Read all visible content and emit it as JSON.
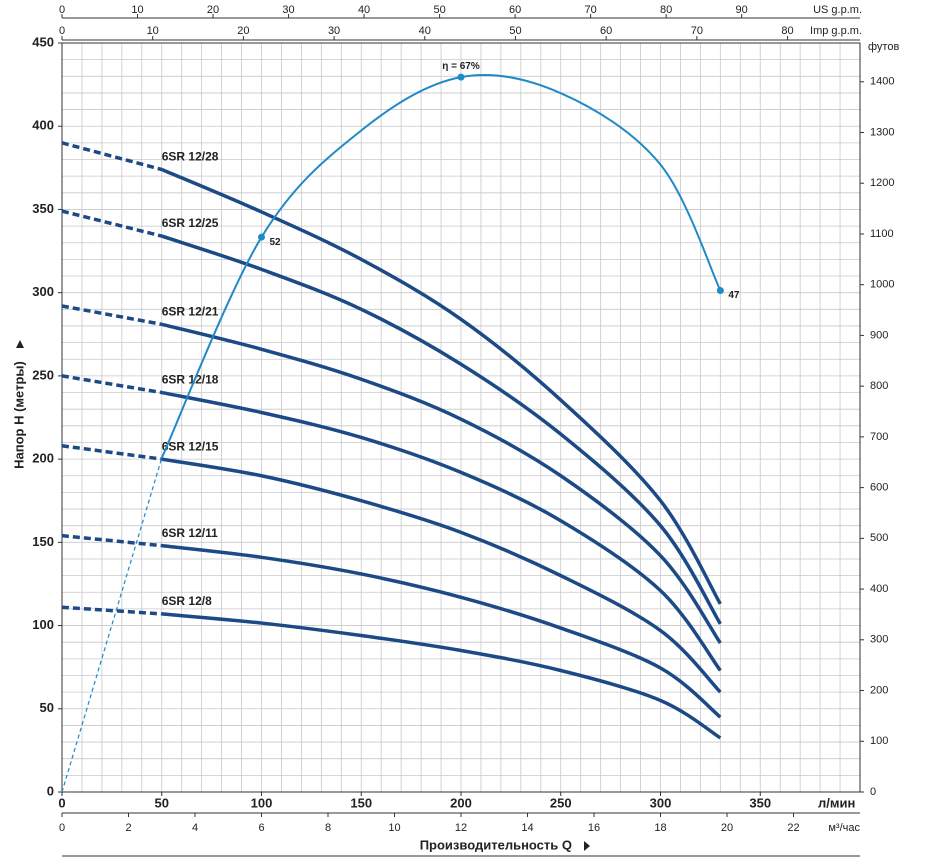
{
  "chart_data": {
    "type": "line",
    "ylabel": "Напор H (метры)",
    "y2label": "футов",
    "xlabel": "л/мин",
    "xtitle": "Производительность Q",
    "x": [
      0,
      50,
      100,
      150,
      200,
      250,
      300,
      330
    ],
    "xlim": [
      0,
      400
    ],
    "xticks": [
      0,
      50,
      100,
      150,
      200,
      250,
      300,
      350
    ],
    "xminorticks": [
      10,
      20,
      30,
      40,
      60,
      70,
      80,
      90,
      110,
      120,
      130,
      140,
      160,
      170,
      180,
      190,
      210,
      220,
      230,
      240,
      260,
      270,
      280,
      290,
      310,
      320,
      330,
      340,
      360,
      370,
      380,
      390
    ],
    "ylim": [
      0,
      450
    ],
    "yticks": [
      0,
      50,
      100,
      150,
      200,
      250,
      300,
      350,
      400,
      450
    ],
    "yminorticks": [
      10,
      20,
      30,
      40,
      60,
      70,
      80,
      90,
      110,
      120,
      130,
      140,
      160,
      170,
      180,
      190,
      210,
      220,
      230,
      240,
      260,
      270,
      280,
      290,
      310,
      320,
      330,
      340,
      360,
      370,
      380,
      390,
      410,
      420,
      430,
      440
    ],
    "y2lim": [
      0,
      1476.4
    ],
    "y2ticks": [
      0,
      100,
      200,
      300,
      400,
      500,
      600,
      700,
      800,
      900,
      1000,
      1100,
      1200,
      1300,
      1400
    ],
    "top_axes": [
      {
        "label": "US g.p.m.",
        "lim": [
          0,
          105.67
        ],
        "ticks": [
          0,
          10,
          20,
          30,
          40,
          50,
          60,
          70,
          80,
          90
        ]
      },
      {
        "label": "Imp g.p.m.",
        "lim": [
          0,
          87.99
        ],
        "ticks": [
          0,
          10,
          20,
          30,
          40,
          50,
          60,
          70,
          80
        ]
      }
    ],
    "bottom_axis": {
      "label": "м³/час",
      "lim": [
        0,
        24
      ],
      "ticks": [
        0,
        2,
        4,
        6,
        8,
        10,
        12,
        14,
        16,
        18,
        20,
        22
      ]
    },
    "grid": true,
    "series": [
      {
        "name": "6SR 12/28",
        "color": "#1c4a86",
        "values": [
          390,
          374,
          348.5,
          320,
          284,
          235.5,
          175,
          113
        ]
      },
      {
        "name": "6SR 12/25",
        "color": "#1c4a86",
        "values": [
          349,
          334,
          314,
          290,
          257,
          215,
          160,
          101
        ]
      },
      {
        "name": "6SR 12/21",
        "color": "#1c4a86",
        "values": [
          292,
          281,
          266,
          248,
          224,
          190,
          142,
          89.5
        ]
      },
      {
        "name": "6SR 12/18",
        "color": "#1c4a86",
        "values": [
          250,
          240,
          228,
          213,
          192,
          163,
          121,
          73
        ]
      },
      {
        "name": "6SR 12/15",
        "color": "#1c4a86",
        "values": [
          208,
          200,
          190,
          175,
          156,
          130,
          97,
          60
        ]
      },
      {
        "name": "6SR 12/11",
        "color": "#1c4a86",
        "values": [
          154,
          148,
          141,
          131,
          117,
          98.5,
          74.5,
          45
        ]
      },
      {
        "name": "6SR 12/8",
        "color": "#1c4a86",
        "values": [
          111,
          107,
          101.5,
          94,
          85,
          73,
          55,
          32.5
        ]
      }
    ],
    "efficiency": {
      "color": "#1f8ac8",
      "lim": [
        0,
        70.2
      ],
      "values": [
        0,
        31.3,
        52,
        62,
        67,
        65.5,
        58.8,
        47
      ],
      "value_labels": [
        null,
        null,
        "52",
        null,
        "η = 67%",
        null,
        null,
        "47"
      ]
    }
  }
}
